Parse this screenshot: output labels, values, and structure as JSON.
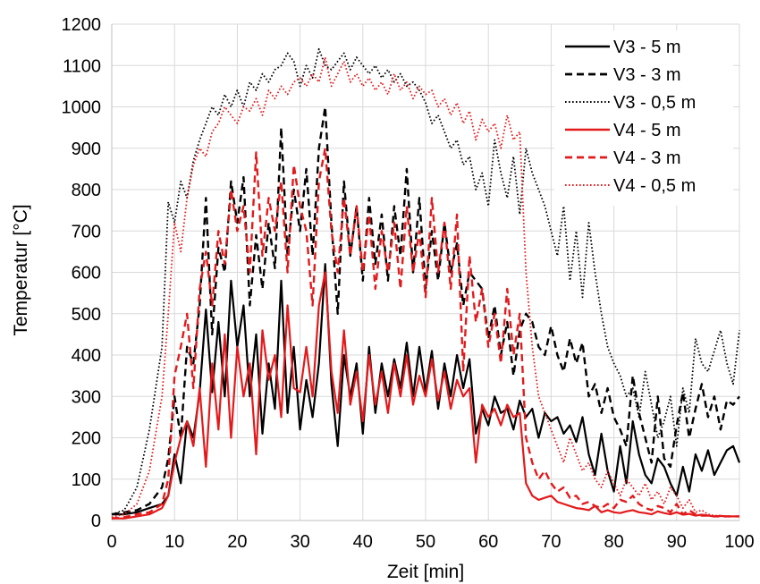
{
  "chart_data": {
    "type": "line",
    "title": "",
    "xlabel": "Zeit [min]",
    "ylabel": "Temperatur [°C]",
    "xlim": [
      0,
      100
    ],
    "ylim": [
      0,
      1200
    ],
    "xticks": [
      "0",
      "10",
      "20",
      "30",
      "40",
      "50",
      "60",
      "70",
      "80",
      "90",
      "100"
    ],
    "yticks": [
      "0",
      "100",
      "200",
      "300",
      "400",
      "500",
      "600",
      "700",
      "800",
      "900",
      "1000",
      "1100",
      "1200"
    ],
    "grid": true,
    "legend_position": "top-right",
    "series": [
      {
        "name": "V3 - 5 m",
        "color": "#000000",
        "dash": "solid",
        "x": [
          0,
          2,
          4,
          6,
          8,
          9,
          10,
          11,
          12,
          13,
          14,
          15,
          16,
          17,
          18,
          19,
          20,
          21,
          22,
          23,
          24,
          25,
          26,
          27,
          28,
          29,
          30,
          31,
          32,
          33,
          34,
          35,
          36,
          37,
          38,
          39,
          40,
          41,
          42,
          43,
          44,
          45,
          46,
          47,
          48,
          49,
          50,
          51,
          52,
          53,
          54,
          55,
          56,
          57,
          58,
          59,
          60,
          61,
          62,
          63,
          64,
          65,
          66,
          67,
          68,
          69,
          70,
          71,
          72,
          73,
          74,
          75,
          76,
          77,
          78,
          79,
          80,
          81,
          82,
          83,
          84,
          85,
          86,
          87,
          88,
          89,
          90,
          91,
          92,
          93,
          94,
          95,
          96,
          97,
          98,
          99,
          100
        ],
        "y": [
          15,
          15,
          20,
          30,
          40,
          60,
          160,
          90,
          240,
          200,
          310,
          510,
          310,
          480,
          300,
          580,
          420,
          520,
          300,
          450,
          210,
          380,
          270,
          580,
          260,
          420,
          220,
          340,
          250,
          380,
          620,
          330,
          180,
          400,
          300,
          380,
          210,
          420,
          260,
          380,
          300,
          390,
          320,
          430,
          300,
          420,
          310,
          410,
          270,
          380,
          300,
          400,
          320,
          390,
          210,
          270,
          230,
          300,
          260,
          270,
          220,
          290,
          250,
          270,
          200,
          260,
          240,
          250,
          210,
          230,
          190,
          250,
          160,
          110,
          210,
          120,
          70,
          180,
          90,
          240,
          160,
          110,
          90,
          150,
          130,
          90,
          60,
          130,
          70,
          160,
          120,
          170,
          110,
          140,
          170,
          180,
          140
        ]
      },
      {
        "name": "V3 - 3 m",
        "color": "#000000",
        "dash": "dashed",
        "x": [
          0,
          2,
          4,
          6,
          8,
          9,
          10,
          11,
          12,
          13,
          14,
          15,
          16,
          17,
          18,
          19,
          20,
          21,
          22,
          23,
          24,
          25,
          26,
          27,
          28,
          29,
          30,
          31,
          32,
          33,
          34,
          35,
          36,
          37,
          38,
          39,
          40,
          41,
          42,
          43,
          44,
          45,
          46,
          47,
          48,
          49,
          50,
          51,
          52,
          53,
          54,
          55,
          56,
          57,
          58,
          59,
          60,
          61,
          62,
          63,
          64,
          65,
          66,
          67,
          68,
          69,
          70,
          71,
          72,
          73,
          74,
          75,
          76,
          77,
          78,
          79,
          80,
          81,
          82,
          83,
          84,
          85,
          86,
          87,
          88,
          89,
          90,
          91,
          92,
          93,
          94,
          95,
          96,
          97,
          98,
          99,
          100
        ],
        "y": [
          15,
          20,
          25,
          40,
          80,
          150,
          300,
          200,
          420,
          380,
          520,
          780,
          450,
          660,
          600,
          820,
          720,
          830,
          520,
          690,
          560,
          720,
          610,
          950,
          640,
          800,
          700,
          850,
          640,
          900,
          1000,
          720,
          500,
          820,
          640,
          760,
          580,
          780,
          620,
          740,
          580,
          760,
          640,
          850,
          600,
          780,
          560,
          700,
          580,
          720,
          600,
          670,
          520,
          600,
          580,
          560,
          440,
          520,
          400,
          480,
          350,
          460,
          500,
          480,
          420,
          400,
          470,
          400,
          360,
          440,
          380,
          430,
          300,
          330,
          260,
          320,
          250,
          220,
          180,
          350,
          260,
          200,
          140,
          300,
          150,
          130,
          230,
          310,
          200,
          270,
          330,
          250,
          300,
          220,
          290,
          280,
          300
        ]
      },
      {
        "name": "V3 - 0,5 m",
        "color": "#000000",
        "dash": "dotted",
        "x": [
          0,
          2,
          4,
          6,
          8,
          9,
          10,
          11,
          12,
          13,
          14,
          15,
          16,
          17,
          18,
          19,
          20,
          21,
          22,
          23,
          24,
          25,
          26,
          27,
          28,
          29,
          30,
          31,
          32,
          33,
          34,
          35,
          36,
          37,
          38,
          39,
          40,
          41,
          42,
          43,
          44,
          45,
          46,
          47,
          48,
          49,
          50,
          51,
          52,
          53,
          54,
          55,
          56,
          57,
          58,
          59,
          60,
          61,
          62,
          63,
          64,
          65,
          66,
          67,
          68,
          69,
          70,
          71,
          72,
          73,
          74,
          75,
          76,
          77,
          78,
          79,
          80,
          81,
          82,
          83,
          84,
          85,
          86,
          87,
          88,
          89,
          90,
          91,
          92,
          93,
          94,
          95,
          96,
          97,
          98,
          99,
          100
        ],
        "y": [
          15,
          25,
          80,
          220,
          420,
          770,
          720,
          820,
          780,
          870,
          920,
          960,
          1000,
          980,
          1030,
          1000,
          1040,
          1000,
          1060,
          1040,
          1080,
          1060,
          1090,
          1100,
          1130,
          1110,
          1050,
          1100,
          1070,
          1140,
          1100,
          1090,
          1110,
          1130,
          1090,
          1120,
          1100,
          1080,
          1100,
          1070,
          1090,
          1060,
          1080,
          1050,
          1060,
          1040,
          1010,
          960,
          980,
          940,
          900,
          920,
          860,
          880,
          800,
          840,
          760,
          920,
          840,
          780,
          880,
          740,
          900,
          840,
          800,
          760,
          700,
          640,
          760,
          580,
          700,
          540,
          720,
          600,
          500,
          420,
          380,
          350,
          300,
          320,
          250,
          360,
          280,
          200,
          240,
          300,
          180,
          320,
          260,
          440,
          380,
          360,
          410,
          460,
          380,
          330,
          460
        ]
      },
      {
        "name": "V4 - 5 m",
        "color": "#e31a1c",
        "dash": "solid",
        "x": [
          0,
          2,
          4,
          6,
          8,
          9,
          10,
          11,
          12,
          13,
          14,
          15,
          16,
          17,
          18,
          19,
          20,
          21,
          22,
          23,
          24,
          25,
          26,
          27,
          28,
          29,
          30,
          31,
          32,
          33,
          34,
          35,
          36,
          37,
          38,
          39,
          40,
          41,
          42,
          43,
          44,
          45,
          46,
          47,
          48,
          49,
          50,
          51,
          52,
          53,
          54,
          55,
          56,
          57,
          58,
          59,
          60,
          61,
          62,
          63,
          64,
          65,
          66,
          67,
          68,
          69,
          70,
          71,
          72,
          73,
          74,
          75,
          76,
          77,
          78,
          79,
          80,
          81,
          82,
          83,
          84,
          85,
          86,
          87,
          88,
          89,
          90,
          91,
          92,
          93,
          94,
          95,
          96,
          97,
          98,
          99,
          100
        ],
        "y": [
          5,
          5,
          10,
          15,
          30,
          60,
          140,
          200,
          240,
          180,
          320,
          130,
          380,
          220,
          450,
          200,
          420,
          300,
          380,
          160,
          460,
          340,
          400,
          250,
          520,
          320,
          310,
          420,
          300,
          520,
          600,
          360,
          260,
          460,
          280,
          360,
          240,
          400,
          280,
          360,
          260,
          380,
          300,
          400,
          280,
          350,
          300,
          390,
          290,
          360,
          270,
          340,
          300,
          320,
          140,
          280,
          250,
          270,
          230,
          280,
          250,
          260,
          90,
          60,
          50,
          55,
          60,
          45,
          40,
          35,
          30,
          28,
          25,
          35,
          20,
          25,
          20,
          18,
          22,
          25,
          20,
          18,
          15,
          22,
          18,
          15,
          20,
          14,
          16,
          12,
          14,
          12,
          10,
          11,
          10,
          10,
          10
        ]
      },
      {
        "name": "V4 - 3 m",
        "color": "#e31a1c",
        "dash": "dashed",
        "x": [
          0,
          2,
          4,
          6,
          8,
          9,
          10,
          11,
          12,
          13,
          14,
          15,
          16,
          17,
          18,
          19,
          20,
          21,
          22,
          23,
          24,
          25,
          26,
          27,
          28,
          29,
          30,
          31,
          32,
          33,
          34,
          35,
          36,
          37,
          38,
          39,
          40,
          41,
          42,
          43,
          44,
          45,
          46,
          47,
          48,
          49,
          50,
          51,
          52,
          53,
          54,
          55,
          56,
          57,
          58,
          59,
          60,
          61,
          62,
          63,
          64,
          65,
          66,
          67,
          68,
          69,
          70,
          71,
          72,
          73,
          74,
          75,
          76,
          77,
          78,
          79,
          80,
          81,
          82,
          83,
          84,
          85,
          86,
          87,
          88,
          89,
          90,
          91,
          92,
          93,
          94,
          95,
          96,
          97,
          98,
          99,
          100
        ],
        "y": [
          5,
          8,
          15,
          20,
          40,
          100,
          350,
          420,
          500,
          320,
          560,
          650,
          520,
          700,
          620,
          800,
          700,
          760,
          600,
          890,
          640,
          780,
          700,
          820,
          600,
          860,
          760,
          700,
          520,
          820,
          900,
          700,
          600,
          780,
          640,
          760,
          600,
          740,
          560,
          700,
          600,
          720,
          560,
          760,
          600,
          700,
          540,
          780,
          600,
          720,
          560,
          740,
          360,
          640,
          480,
          560,
          420,
          500,
          380,
          560,
          400,
          500,
          200,
          140,
          100,
          120,
          90,
          70,
          80,
          55,
          60,
          40,
          45,
          35,
          30,
          40,
          30,
          50,
          45,
          60,
          40,
          30,
          25,
          35,
          30,
          20,
          40,
          15,
          25,
          15,
          12,
          12,
          10,
          10,
          10,
          10,
          10
        ]
      },
      {
        "name": "V4 - 0,5 m",
        "color": "#e31a1c",
        "dash": "dotted",
        "x": [
          0,
          2,
          4,
          6,
          8,
          9,
          10,
          11,
          12,
          13,
          14,
          15,
          16,
          17,
          18,
          19,
          20,
          21,
          22,
          23,
          24,
          25,
          26,
          27,
          28,
          29,
          30,
          31,
          32,
          33,
          34,
          35,
          36,
          37,
          38,
          39,
          40,
          41,
          42,
          43,
          44,
          45,
          46,
          47,
          48,
          49,
          50,
          51,
          52,
          53,
          54,
          55,
          56,
          57,
          58,
          59,
          60,
          61,
          62,
          63,
          64,
          65,
          66,
          67,
          68,
          69,
          70,
          71,
          72,
          73,
          74,
          75,
          76,
          77,
          78,
          79,
          80,
          81,
          82,
          83,
          84,
          85,
          86,
          87,
          88,
          89,
          90,
          91,
          92,
          93,
          94,
          95,
          96,
          97,
          98,
          99,
          100
        ],
        "y": [
          8,
          15,
          40,
          120,
          300,
          500,
          720,
          650,
          780,
          860,
          900,
          880,
          940,
          960,
          1000,
          980,
          960,
          1000,
          990,
          1020,
          980,
          1040,
          1020,
          1050,
          1030,
          1060,
          1070,
          1050,
          1080,
          1060,
          1120,
          1050,
          1080,
          1110,
          1060,
          1080,
          1050,
          1070,
          1040,
          1060,
          1030,
          1080,
          1040,
          1060,
          1020,
          1050,
          1030,
          1040,
          1000,
          1020,
          980,
          1010,
          960,
          990,
          920,
          970,
          940,
          960,
          900,
          980,
          920,
          940,
          600,
          420,
          300,
          260,
          220,
          180,
          140,
          200,
          160,
          120,
          140,
          100,
          80,
          120,
          90,
          60,
          100,
          80,
          60,
          90,
          50,
          70,
          40,
          80,
          60,
          30,
          50,
          20,
          25,
          15,
          12,
          12,
          10,
          10,
          10
        ]
      }
    ]
  }
}
